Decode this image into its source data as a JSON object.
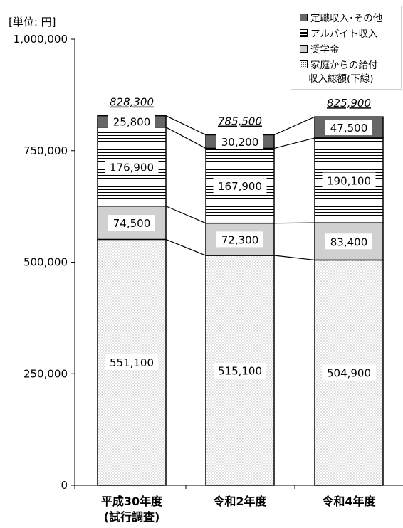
{
  "unit_label": "[単位: 円]",
  "legend": [
    {
      "key": "top",
      "label": "定職収入･その他"
    },
    {
      "key": "arb",
      "label": "アルバイト収入"
    },
    {
      "key": "sch",
      "label": "奨学金"
    },
    {
      "key": "fam",
      "label": "家庭からの給付"
    }
  ],
  "legend_note": "収入総額(下線)",
  "colors": {
    "top": "#666666",
    "scholarship": "#d0d0d0",
    "border": "#000000",
    "dot": "#666666"
  },
  "chart_data": {
    "type": "bar",
    "stacked": true,
    "categories": [
      "平成30年度\n(試行調査)",
      "令和2年度",
      "令和4年度"
    ],
    "series": [
      {
        "name": "家庭からの給付",
        "values": [
          551100,
          515100,
          504900
        ],
        "labels": [
          "551,100",
          "515,100",
          "504,900"
        ]
      },
      {
        "name": "奨学金",
        "values": [
          74500,
          72300,
          83400
        ],
        "labels": [
          "74,500",
          "72,300",
          "83,400"
        ]
      },
      {
        "name": "アルバイト収入",
        "values": [
          176900,
          167900,
          190100
        ],
        "labels": [
          "176,900",
          "167,900",
          "190,100"
        ]
      },
      {
        "name": "定職収入･その他",
        "values": [
          25800,
          30200,
          47500
        ],
        "labels": [
          "25,800",
          "30,200",
          "47,500"
        ]
      }
    ],
    "totals": [
      828300,
      785500,
      825900
    ],
    "total_labels": [
      "828,300",
      "785,500",
      "825,900"
    ],
    "ylim": [
      0,
      1000000
    ],
    "yticks": [
      0,
      250000,
      500000,
      750000,
      1000000
    ],
    "ytick_labels": [
      "0",
      "250,000",
      "500,000",
      "750,000",
      "1,000,000"
    ],
    "grid": false,
    "legend_position": "top-right"
  }
}
